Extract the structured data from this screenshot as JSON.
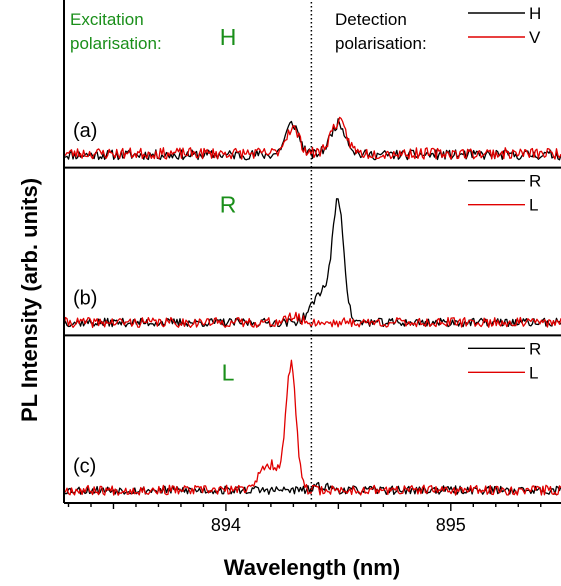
{
  "chart_data": {
    "type": "line",
    "xlabel": "Wavelength (nm)",
    "ylabel": "PL Intensity (arb. units)",
    "xlim": [
      893.28,
      895.49
    ],
    "x_ticks": [
      {
        "value": 894,
        "label": "894"
      },
      {
        "value": 895,
        "label": "895"
      }
    ],
    "reference_line": {
      "x": 894.38,
      "style": "dotted"
    },
    "excitation_label": [
      "Excitation",
      "polarisation:"
    ],
    "detection_label": [
      "Detection",
      "polarisation:"
    ],
    "colors": {
      "black": "#000000",
      "red": "#e00000",
      "annotation": "#1a8f1a"
    },
    "panels": [
      {
        "label": "(a)",
        "excitation": "H",
        "series": [
          {
            "name": "H",
            "color": "#000000",
            "baseline": 0.02,
            "noise": 0.035,
            "seed": 11,
            "peaks": [
              {
                "center": 894.295,
                "width": 0.03,
                "height": 0.22
              },
              {
                "center": 894.5,
                "width": 0.035,
                "height": 0.22
              }
            ]
          },
          {
            "name": "V",
            "color": "#e00000",
            "baseline": 0.03,
            "noise": 0.04,
            "seed": 23,
            "peaks": [
              {
                "center": 894.295,
                "width": 0.03,
                "height": 0.18
              },
              {
                "center": 894.5,
                "width": 0.035,
                "height": 0.22
              }
            ]
          }
        ]
      },
      {
        "label": "(b)",
        "excitation": "R",
        "series": [
          {
            "name": "R",
            "color": "#000000",
            "baseline": 0.02,
            "noise": 0.03,
            "seed": 37,
            "peaks": [
              {
                "center": 894.43,
                "width": 0.045,
                "height": 0.22
              },
              {
                "center": 894.5,
                "width": 0.025,
                "height": 0.8
              }
            ]
          },
          {
            "name": "L",
            "color": "#e00000",
            "baseline": 0.02,
            "noise": 0.035,
            "seed": 41,
            "peaks": [
              {
                "center": 894.3,
                "width": 0.03,
                "height": 0.04
              }
            ]
          }
        ]
      },
      {
        "label": "(c)",
        "excitation": "L",
        "series": [
          {
            "name": "R",
            "color": "#000000",
            "baseline": 0.02,
            "noise": 0.03,
            "seed": 53,
            "peaks": [
              {
                "center": 894.43,
                "width": 0.03,
                "height": 0.03
              }
            ]
          },
          {
            "name": "L",
            "color": "#e00000",
            "baseline": 0.02,
            "noise": 0.035,
            "seed": 67,
            "peaks": [
              {
                "center": 894.2,
                "width": 0.05,
                "height": 0.18
              },
              {
                "center": 894.29,
                "width": 0.022,
                "height": 0.85
              }
            ]
          }
        ]
      }
    ]
  }
}
